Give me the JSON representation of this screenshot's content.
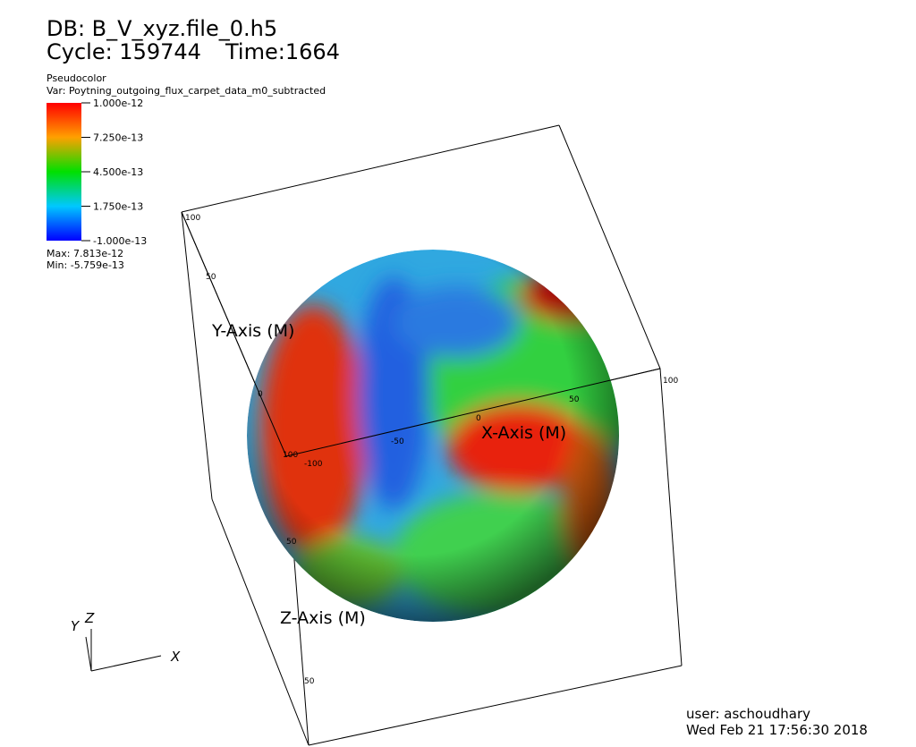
{
  "header": {
    "db": "DB: B_V_xyz.file_0.h5",
    "cycle": "Cycle: 159744",
    "time": "Time:1664"
  },
  "legend": {
    "plot": "Pseudocolor",
    "var": "Var: Poytning_outgoing_flux_carpet_data_m0_subtracted",
    "ticks": [
      "1.000e-12",
      "7.250e-13",
      "4.500e-13",
      "1.750e-13",
      "-1.000e-13"
    ],
    "max": "Max: 7.813e-12",
    "min": "Min: -5.759e-13"
  },
  "axes": {
    "x_title": "X-Axis (M)",
    "y_title": "Y-Axis (M)",
    "z_title": "Z-Axis (M)",
    "x_ticks": [
      "-100",
      "-50",
      "0",
      "50",
      "100"
    ],
    "y_ticks": [
      "100",
      "50",
      "0"
    ],
    "z_ticks": [
      "100",
      "50",
      "50"
    ]
  },
  "triad": {
    "x": "X",
    "y": "Y",
    "z": "Z"
  },
  "footer": {
    "user": "user: aschoudhary",
    "date": "Wed Feb 21 17:56:30 2018"
  }
}
